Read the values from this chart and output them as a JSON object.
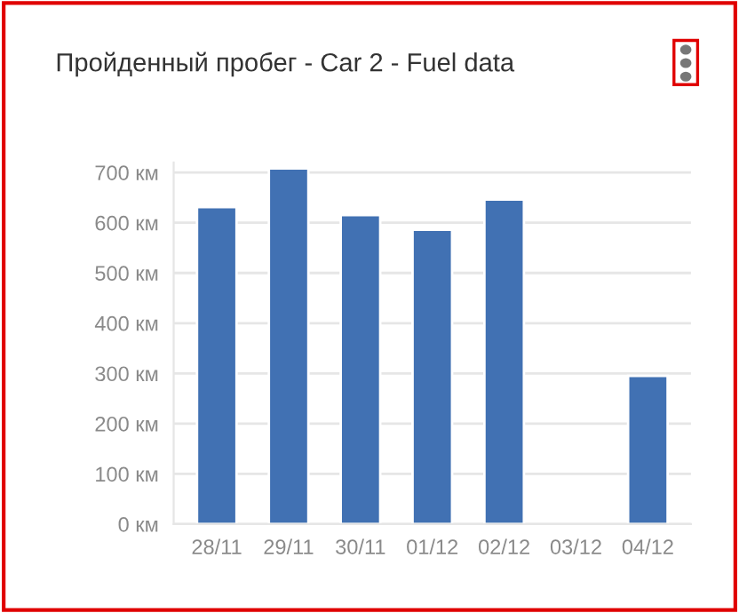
{
  "chart_data": {
    "type": "bar",
    "title": "Пройденный пробег - Car 2 - Fuel data",
    "categories": [
      "28/11",
      "29/11",
      "30/11",
      "01/12",
      "02/12",
      "03/12",
      "04/12"
    ],
    "values": [
      631,
      708,
      615,
      586,
      646,
      null,
      295
    ],
    "color": "#4171b3",
    "ylim": [
      0,
      720
    ],
    "yticks": [
      {
        "value": 0,
        "label": "0 км"
      },
      {
        "value": 100,
        "label": "100 км"
      },
      {
        "value": 200,
        "label": "200 км"
      },
      {
        "value": 300,
        "label": "300 км"
      },
      {
        "value": 400,
        "label": "400 км"
      },
      {
        "value": 500,
        "label": "500 км"
      },
      {
        "value": 600,
        "label": "600 км"
      },
      {
        "value": 700,
        "label": "700 км"
      }
    ],
    "grid": "y",
    "legend": false
  }
}
